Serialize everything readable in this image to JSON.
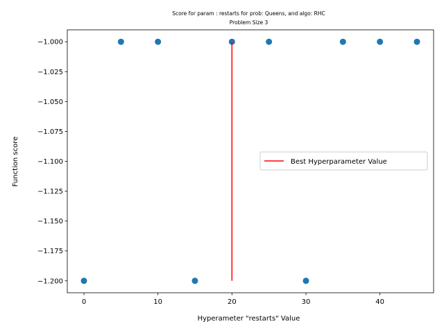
{
  "chart_data": {
    "type": "scatter",
    "title": "Score for param : restarts for prob: Queens, and algo: RHC",
    "subtitle": "Problem Size 3",
    "xlabel": "Hyperameter \"restarts\" Value",
    "ylabel": "Function score",
    "xlim": [
      -2.25,
      47.25
    ],
    "ylim": [
      -1.21,
      -0.99
    ],
    "x_ticks": [
      0,
      10,
      20,
      30,
      40
    ],
    "x_tick_labels": [
      "0",
      "10",
      "20",
      "30",
      "40"
    ],
    "y_ticks": [
      -1.0,
      -1.025,
      -1.05,
      -1.075,
      -1.1,
      -1.125,
      -1.15,
      -1.175,
      -1.2
    ],
    "y_tick_labels": [
      "−1.000",
      "−1.025",
      "−1.050",
      "−1.075",
      "−1.100",
      "−1.125",
      "−1.150",
      "−1.175",
      "−1.200"
    ],
    "grid": false,
    "series": [
      {
        "type": "scatter",
        "color": "#1f77b4",
        "x": [
          0,
          5,
          10,
          15,
          20,
          25,
          30,
          35,
          40,
          45
        ],
        "y": [
          -1.2,
          -1.0,
          -1.0,
          -1.2,
          -1.0,
          -1.0,
          -1.2,
          -1.0,
          -1.0,
          -1.0
        ]
      },
      {
        "type": "vline",
        "name": "Best Hyperparameter Value",
        "color": "#ff0000",
        "x": 20,
        "y_range": [
          -1.2,
          -1.0
        ]
      }
    ],
    "legend": {
      "position": "center-right",
      "entries": [
        "Best Hyperparameter Value"
      ]
    }
  }
}
